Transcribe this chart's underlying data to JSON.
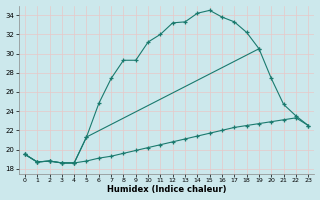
{
  "xlabel": "Humidex (Indice chaleur)",
  "bg_color": "#cce8ec",
  "line_color": "#1a7a6e",
  "xlim": [
    -0.5,
    23.5
  ],
  "ylim": [
    17.5,
    35.0
  ],
  "xticks": [
    0,
    1,
    2,
    3,
    4,
    5,
    6,
    7,
    8,
    9,
    10,
    11,
    12,
    13,
    14,
    15,
    16,
    17,
    18,
    19,
    20,
    21,
    22,
    23
  ],
  "yticks": [
    18,
    20,
    22,
    24,
    26,
    28,
    30,
    32,
    34
  ],
  "curve1_x": [
    0,
    1,
    2,
    3,
    4,
    5,
    6,
    7,
    8,
    9,
    10,
    11,
    12,
    13,
    14,
    15,
    16,
    17,
    18,
    19
  ],
  "curve1_y": [
    19.5,
    18.7,
    18.8,
    18.6,
    18.6,
    21.3,
    24.8,
    27.4,
    29.3,
    29.3,
    31.2,
    32.0,
    33.2,
    33.3,
    34.2,
    34.5,
    33.8,
    33.3,
    32.2,
    30.5
  ],
  "curve2_x": [
    0,
    1,
    2,
    3,
    4,
    5,
    19,
    20,
    21,
    22,
    23
  ],
  "curve2_y": [
    19.5,
    18.7,
    18.8,
    18.6,
    18.6,
    21.3,
    30.5,
    27.4,
    24.7,
    23.5,
    22.5
  ],
  "curve3_x": [
    0,
    1,
    2,
    3,
    4,
    5,
    6,
    7,
    8,
    9,
    10,
    11,
    12,
    13,
    14,
    15,
    16,
    17,
    18,
    19,
    20,
    21,
    22,
    23
  ],
  "curve3_y": [
    19.5,
    18.7,
    18.8,
    18.6,
    18.6,
    18.8,
    19.1,
    19.3,
    19.6,
    19.9,
    20.2,
    20.5,
    20.8,
    21.1,
    21.4,
    21.7,
    22.0,
    22.3,
    22.5,
    22.7,
    22.9,
    23.1,
    23.3,
    22.5
  ]
}
